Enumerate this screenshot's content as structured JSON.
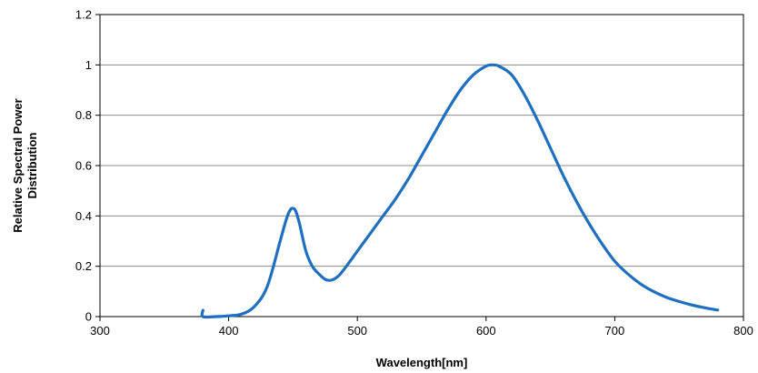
{
  "chart_data": {
    "type": "line",
    "title": "",
    "xlabel": "Wavelength[nm]",
    "ylabel_lines": [
      "Relative Spectral Power",
      "Distribution"
    ],
    "xlim": [
      300,
      800
    ],
    "ylim": [
      0,
      1.2
    ],
    "x_ticks": [
      300,
      400,
      500,
      600,
      700,
      800
    ],
    "x_tick_labels": [
      "300",
      "400",
      "500",
      "600",
      "700",
      "800"
    ],
    "y_ticks": [
      0,
      0.2,
      0.4,
      0.6,
      0.8,
      1,
      1.2
    ],
    "y_tick_labels": [
      "0",
      "0.2",
      "0.4",
      "0.6",
      "0.8",
      "1",
      "1.2"
    ],
    "grid": "horizontal",
    "legend": "none",
    "series": [
      {
        "color": "#1f6fc0",
        "x": [
          380,
          380,
          390,
          400,
          410,
          420,
          430,
          440,
          445,
          448,
          450,
          452,
          455,
          460,
          465,
          470,
          475,
          480,
          485,
          490,
          500,
          510,
          520,
          530,
          540,
          550,
          560,
          570,
          580,
          590,
          600,
          605,
          610,
          620,
          630,
          640,
          650,
          660,
          670,
          680,
          690,
          700,
          710,
          720,
          730,
          740,
          750,
          760,
          770,
          780
        ],
        "y": [
          0.025,
          0.0,
          0.0,
          0.003,
          0.01,
          0.04,
          0.12,
          0.3,
          0.39,
          0.425,
          0.43,
          0.42,
          0.37,
          0.26,
          0.2,
          0.17,
          0.148,
          0.145,
          0.16,
          0.19,
          0.26,
          0.33,
          0.4,
          0.47,
          0.55,
          0.64,
          0.73,
          0.82,
          0.9,
          0.96,
          0.995,
          1.0,
          0.995,
          0.96,
          0.88,
          0.78,
          0.67,
          0.56,
          0.46,
          0.37,
          0.29,
          0.22,
          0.17,
          0.13,
          0.1,
          0.077,
          0.06,
          0.046,
          0.035,
          0.026
        ]
      }
    ]
  }
}
